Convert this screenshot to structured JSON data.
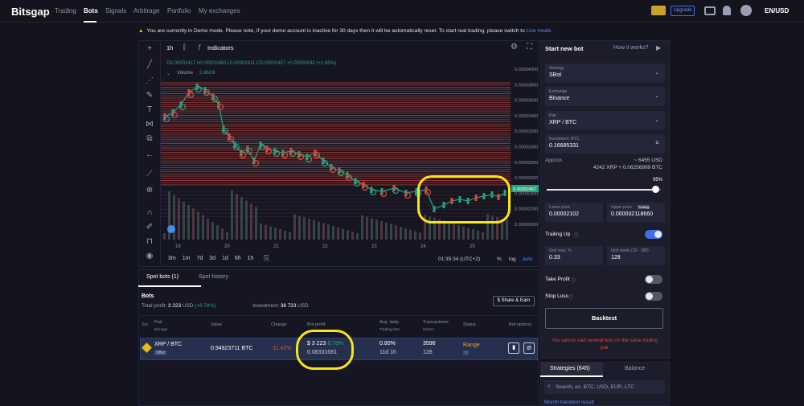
{
  "topbar": {
    "logo": "Bitsgap",
    "nav": [
      "Trading",
      "Bots",
      "Signals",
      "Arbitrage",
      "Portfolio",
      "My exchanges"
    ],
    "active": "Bots",
    "upgrade": "Upgrade",
    "currency": "EN/USD"
  },
  "banner": {
    "text": "You are currently in Demo mode. Please note, if your demo account is inactive for 30 days then it will be automatically reset. To start real trading, please switch to ",
    "link": "Live mode."
  },
  "chart": {
    "interval": "1h",
    "indicators": "Indicators",
    "ohlc": "O0.00002417 H0.00002460 L0.00002411 C0.00002457 +0.00000040 (+1.65%)",
    "volume_label": "Volume",
    "volume_value": "2.862/k",
    "price_ticks": [
      "0.00004000",
      "0.00003800",
      "0.00003600",
      "0.00003400",
      "0.00003200",
      "0.00003000",
      "0.00002800",
      "0.00002600",
      "0.00002400",
      "0.00002200",
      "0.00002000"
    ],
    "current_price": "0.00002457",
    "x_ticks": [
      "19",
      "20",
      "21",
      "22",
      "23",
      "24",
      "25"
    ],
    "ranges": [
      "3m",
      "1m",
      "7d",
      "3d",
      "1d",
      "6h",
      "1h"
    ],
    "time": "01:35:34 (UTC+2)",
    "pct": "%",
    "log": "log",
    "auto": "auto"
  },
  "right": {
    "title": "Start new bot",
    "how": "How it works?",
    "strategy_label": "Strategy",
    "strategy": "SBot",
    "exchange_label": "Exchange",
    "exchange": "Binance",
    "pair_label": "Pair",
    "pair": "XRP / BTC",
    "inv_label": "Investment, BTC",
    "investment": "0.16685331",
    "approx": "Approx.",
    "approx_usd": "~ 6455 USD",
    "approx_split": "4242 XRP + 0.06256999 BTC",
    "slider_pct": "95%",
    "slider_value": 0.95,
    "lower_label": "Lower price",
    "lower": "0.00002102",
    "upper_label": "Upper price",
    "upper": "0.000032118660",
    "trailing_badge": "Trailing",
    "trailing_up": "Trailing Up",
    "grid_step_label": "Grid step, %",
    "grid_step": "0.33",
    "grid_levels_label": "Grid levels (10 - 180)",
    "grid_levels": "128",
    "take_profit": "Take Profit",
    "stop_loss": "Stop Loss",
    "backtest": "Backtest",
    "error": "You cannot start several bots on the same trading pair",
    "tab_strategies": "Strategies (645)",
    "tab_balance": "Balance",
    "search_placeholder": "Search, ex. BTC, USD, EUR, LTC",
    "month_backtest": "Month backtest result"
  },
  "bottom": {
    "tab1": "Spot bots (1)",
    "tab2": "Spot history",
    "bots_title": "Bots",
    "profit_label": "Total profit:",
    "profit": "3 223",
    "profit_unit": "USD",
    "profit_pct": "(+8.78%)",
    "inv_label": "Investment:",
    "inv": "36 723",
    "inv_unit": "USD",
    "share": "Share & Earn",
    "headers": {
      "ex": "Ex.",
      "pair": "Pair",
      "bot_type": "Bot type",
      "value": "Value",
      "change": "Change",
      "bot_profit": "Bot profit",
      "avg": "Avg. daily",
      "trading_time": "Trading time",
      "transactions": "Transactions",
      "orders": "Orders",
      "status": "Status",
      "options": "Bot options"
    },
    "row": {
      "pair": "XRP / BTC",
      "type": "SBot",
      "value": "0.94923711 BTC",
      "change": "-11.42%",
      "profit_usd": "$ 3 223",
      "profit_pct": "8.78%",
      "profit_btc": "0.08331681",
      "avg": "0.80%",
      "time": "11d 1h",
      "tx": "3596",
      "orders": "128",
      "status": "Range",
      "status_badge": "↑"
    }
  },
  "colors": {
    "accent": "#3f6ee8",
    "green": "#27a17c",
    "red": "#e0463f",
    "yellow": "#f7e51a",
    "orange": "#f0a020"
  }
}
